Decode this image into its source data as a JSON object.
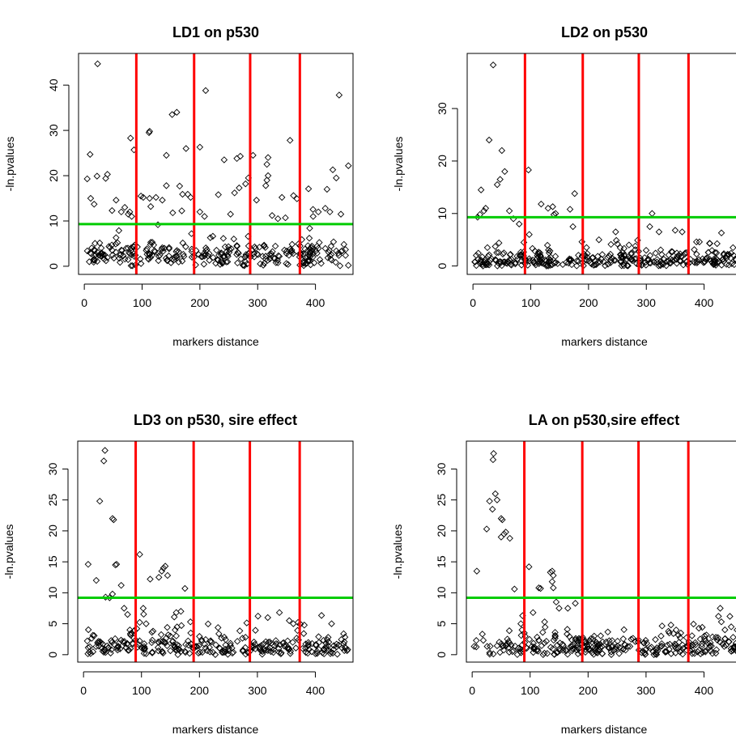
{
  "colors": {
    "points": "#000000",
    "vertical_lines": "#ff0000",
    "threshold_line": "#00cc00",
    "background": "#ffffff"
  },
  "chart_data": [
    {
      "type": "scatter",
      "title": "LD1 on p530",
      "xlabel": "markers distance",
      "ylabel": "-ln.pvalues",
      "xlim": [
        -10,
        465
      ],
      "ylim": [
        -1.8,
        47
      ],
      "xticks": [
        0,
        100,
        200,
        300,
        400
      ],
      "yticks": [
        0,
        10,
        20,
        30,
        40
      ],
      "vlines": [
        90,
        190,
        287,
        373
      ],
      "hline": 9.3,
      "grid": false,
      "marker": "open-diamond",
      "outliers": [
        [
          23,
          44.7
        ],
        [
          210,
          38.8
        ],
        [
          441,
          37.8
        ],
        [
          152,
          33.5
        ],
        [
          160,
          34
        ],
        [
          113,
          29.8
        ],
        [
          112,
          29.5
        ],
        [
          80,
          28.3
        ],
        [
          356,
          27.8
        ],
        [
          200,
          26.3
        ],
        [
          176,
          26
        ],
        [
          86,
          25.7
        ],
        [
          10,
          24.7
        ],
        [
          142,
          24.5
        ],
        [
          270,
          24.3
        ],
        [
          264,
          23.8
        ],
        [
          242,
          23.5
        ],
        [
          318,
          24
        ],
        [
          292,
          24.5
        ],
        [
          316,
          22.5
        ],
        [
          457,
          22.2
        ],
        [
          40,
          20.3
        ],
        [
          22,
          19.9
        ],
        [
          37,
          19.4
        ],
        [
          5,
          19.3
        ],
        [
          430,
          21.3
        ],
        [
          436,
          19.5
        ],
        [
          318,
          20
        ],
        [
          316,
          19
        ],
        [
          314,
          17.8
        ],
        [
          279,
          18.2
        ],
        [
          98,
          15.5
        ],
        [
          102,
          15.2
        ],
        [
          113,
          15
        ],
        [
          124,
          15.2
        ],
        [
          135,
          14.6
        ],
        [
          142,
          17.8
        ],
        [
          165,
          17.7
        ],
        [
          170,
          15.9
        ],
        [
          179,
          15.9
        ],
        [
          184,
          15.2
        ],
        [
          232,
          15.8
        ],
        [
          260,
          16.2
        ],
        [
          268,
          17.3
        ],
        [
          284,
          19.5
        ],
        [
          298,
          14.6
        ],
        [
          342,
          15.2
        ],
        [
          362,
          15.6
        ],
        [
          368,
          14.9
        ],
        [
          388,
          17.1
        ],
        [
          420,
          17
        ],
        [
          417,
          12.8
        ],
        [
          425,
          12
        ],
        [
          444,
          11.5
        ],
        [
          11,
          15
        ],
        [
          17,
          13.7
        ],
        [
          48,
          12.3
        ],
        [
          64,
          12
        ],
        [
          70,
          13
        ],
        [
          55,
          14.6
        ],
        [
          76,
          11.5
        ],
        [
          82,
          11
        ],
        [
          153,
          11.8
        ],
        [
          200,
          12
        ],
        [
          208,
          11
        ],
        [
          253,
          11.5
        ],
        [
          325,
          11.2
        ],
        [
          335,
          10.5
        ],
        [
          348,
          10.7
        ],
        [
          396,
          11
        ],
        [
          405,
          12
        ]
      ],
      "baseline": {
        "seed": 17,
        "count": 300,
        "x_range": [
          3,
          458
        ],
        "mean": 2.5,
        "spread": 2.5,
        "bump_max": 9
      }
    },
    {
      "type": "scatter",
      "title": "LD2 on p530",
      "xlabel": "markers distance",
      "ylabel": "-ln.pvalues",
      "xlim": [
        -10,
        465
      ],
      "ylim": [
        -1.6,
        40.5
      ],
      "xticks": [
        0,
        100,
        200,
        300,
        400
      ],
      "yticks": [
        0,
        10,
        20,
        30
      ],
      "vlines": [
        90,
        190,
        287,
        373
      ],
      "hline": 9.3,
      "grid": false,
      "marker": "open-diamond",
      "outliers": [
        [
          35,
          38.3
        ],
        [
          28,
          24
        ],
        [
          50,
          22
        ],
        [
          42,
          15.5
        ],
        [
          47,
          16.5
        ],
        [
          55,
          18
        ],
        [
          14,
          14.5
        ],
        [
          22,
          11
        ],
        [
          19,
          10.5
        ],
        [
          12,
          9.8
        ],
        [
          8,
          9.3
        ],
        [
          96,
          18.3
        ],
        [
          63,
          10.5
        ],
        [
          70,
          9
        ],
        [
          80,
          8
        ],
        [
          118,
          11.8
        ],
        [
          130,
          11
        ],
        [
          138,
          11.3
        ],
        [
          140,
          9.8
        ],
        [
          143,
          10
        ],
        [
          176,
          13.8
        ],
        [
          168,
          10.8
        ],
        [
          310,
          10
        ],
        [
          306,
          7.5
        ],
        [
          322,
          6.5
        ],
        [
          350,
          6.8
        ],
        [
          362,
          6.5
        ],
        [
          173,
          7.5
        ],
        [
          218,
          5
        ],
        [
          270,
          4
        ],
        [
          281,
          3.8
        ],
        [
          250,
          4.2
        ],
        [
          410,
          4.3
        ],
        [
          430,
          6.3
        ],
        [
          450,
          3.5
        ],
        [
          25,
          3.5
        ],
        [
          88,
          4.5
        ]
      ],
      "baseline": {
        "seed": 29,
        "count": 330,
        "x_range": [
          3,
          460
        ],
        "mean": 1,
        "spread": 1.8,
        "bump_max": 4
      }
    },
    {
      "type": "scatter",
      "title": "LD3 on p530, sire effect",
      "xlabel": "markers distance",
      "ylabel": "-ln.pvalues",
      "xlim": [
        -10,
        465
      ],
      "ylim": [
        -1.2,
        34.5
      ],
      "xticks": [
        0,
        100,
        200,
        300,
        400
      ],
      "yticks": [
        0,
        5,
        10,
        15,
        20,
        25,
        30
      ],
      "vlines": [
        90,
        190,
        287,
        373
      ],
      "hline": 9.2,
      "grid": false,
      "marker": "open-diamond",
      "outliers": [
        [
          37,
          33
        ],
        [
          35,
          31.3
        ],
        [
          28,
          24.8
        ],
        [
          50,
          22
        ],
        [
          52,
          21.8
        ],
        [
          55,
          14.5
        ],
        [
          57,
          14.6
        ],
        [
          8,
          14.6
        ],
        [
          22,
          12
        ],
        [
          38,
          9.3
        ],
        [
          45,
          9.2
        ],
        [
          50,
          9.8
        ],
        [
          65,
          11.2
        ],
        [
          97,
          16.2
        ],
        [
          115,
          12.2
        ],
        [
          130,
          12.5
        ],
        [
          135,
          13.5
        ],
        [
          138,
          14
        ],
        [
          141,
          14.3
        ],
        [
          145,
          12.8
        ],
        [
          175,
          10.7
        ],
        [
          70,
          7.5
        ],
        [
          76,
          6.5
        ],
        [
          103,
          7.5
        ],
        [
          108,
          5
        ],
        [
          92,
          4.2
        ],
        [
          160,
          6.8
        ],
        [
          168,
          7
        ],
        [
          80,
          4
        ],
        [
          83,
          3.5
        ],
        [
          150,
          3
        ],
        [
          120,
          3.8
        ],
        [
          355,
          5.5
        ],
        [
          338,
          6.8
        ],
        [
          362,
          5
        ],
        [
          370,
          5.2
        ],
        [
          428,
          5
        ],
        [
          185,
          3.5
        ]
      ],
      "baseline": {
        "seed": 43,
        "count": 290,
        "x_range": [
          3,
          458
        ],
        "mean": 1.3,
        "spread": 1.8,
        "bump_max": 4.5
      }
    },
    {
      "type": "scatter",
      "title": "LA on p530,sire effect",
      "xlabel": "markers distance",
      "ylabel": "-ln.pvalues",
      "xlim": [
        -10,
        465
      ],
      "ylim": [
        -1.2,
        34.5
      ],
      "xticks": [
        0,
        100,
        200,
        300,
        400
      ],
      "yticks": [
        0,
        5,
        10,
        15,
        20,
        25,
        30
      ],
      "vlines": [
        90,
        190,
        287,
        373
      ],
      "hline": 9.2,
      "grid": false,
      "marker": "open-diamond",
      "outliers": [
        [
          37,
          32.5
        ],
        [
          36,
          31.5
        ],
        [
          40,
          26
        ],
        [
          43,
          25
        ],
        [
          30,
          24.8
        ],
        [
          35,
          23.5
        ],
        [
          50,
          22
        ],
        [
          52,
          21.8
        ],
        [
          25,
          20.3
        ],
        [
          55,
          19.5
        ],
        [
          58,
          19.8
        ],
        [
          50,
          19
        ],
        [
          65,
          18.8
        ],
        [
          8,
          13.5
        ],
        [
          73,
          10.6
        ],
        [
          98,
          14.2
        ],
        [
          118,
          10.7
        ],
        [
          115,
          10.8
        ],
        [
          135,
          13.3
        ],
        [
          138,
          13.5
        ],
        [
          140,
          12.8
        ],
        [
          138,
          11.8
        ],
        [
          140,
          10.8
        ],
        [
          145,
          8.5
        ],
        [
          150,
          7.5
        ],
        [
          165,
          7.5
        ],
        [
          178,
          8.3
        ],
        [
          105,
          6.8
        ],
        [
          125,
          5.3
        ],
        [
          87,
          6.3
        ],
        [
          84,
          5
        ],
        [
          86,
          4
        ],
        [
          90,
          3.5
        ],
        [
          428,
          7.5
        ],
        [
          425,
          6.2
        ],
        [
          430,
          5.3
        ],
        [
          447,
          4.5
        ],
        [
          457,
          4
        ],
        [
          343,
          4.8
        ],
        [
          352,
          4
        ],
        [
          360,
          3.5
        ],
        [
          340,
          3.5
        ]
      ],
      "baseline": {
        "seed": 61,
        "count": 300,
        "x_range": [
          3,
          460
        ],
        "mean": 1.2,
        "spread": 1.8,
        "bump_max": 4
      }
    }
  ]
}
